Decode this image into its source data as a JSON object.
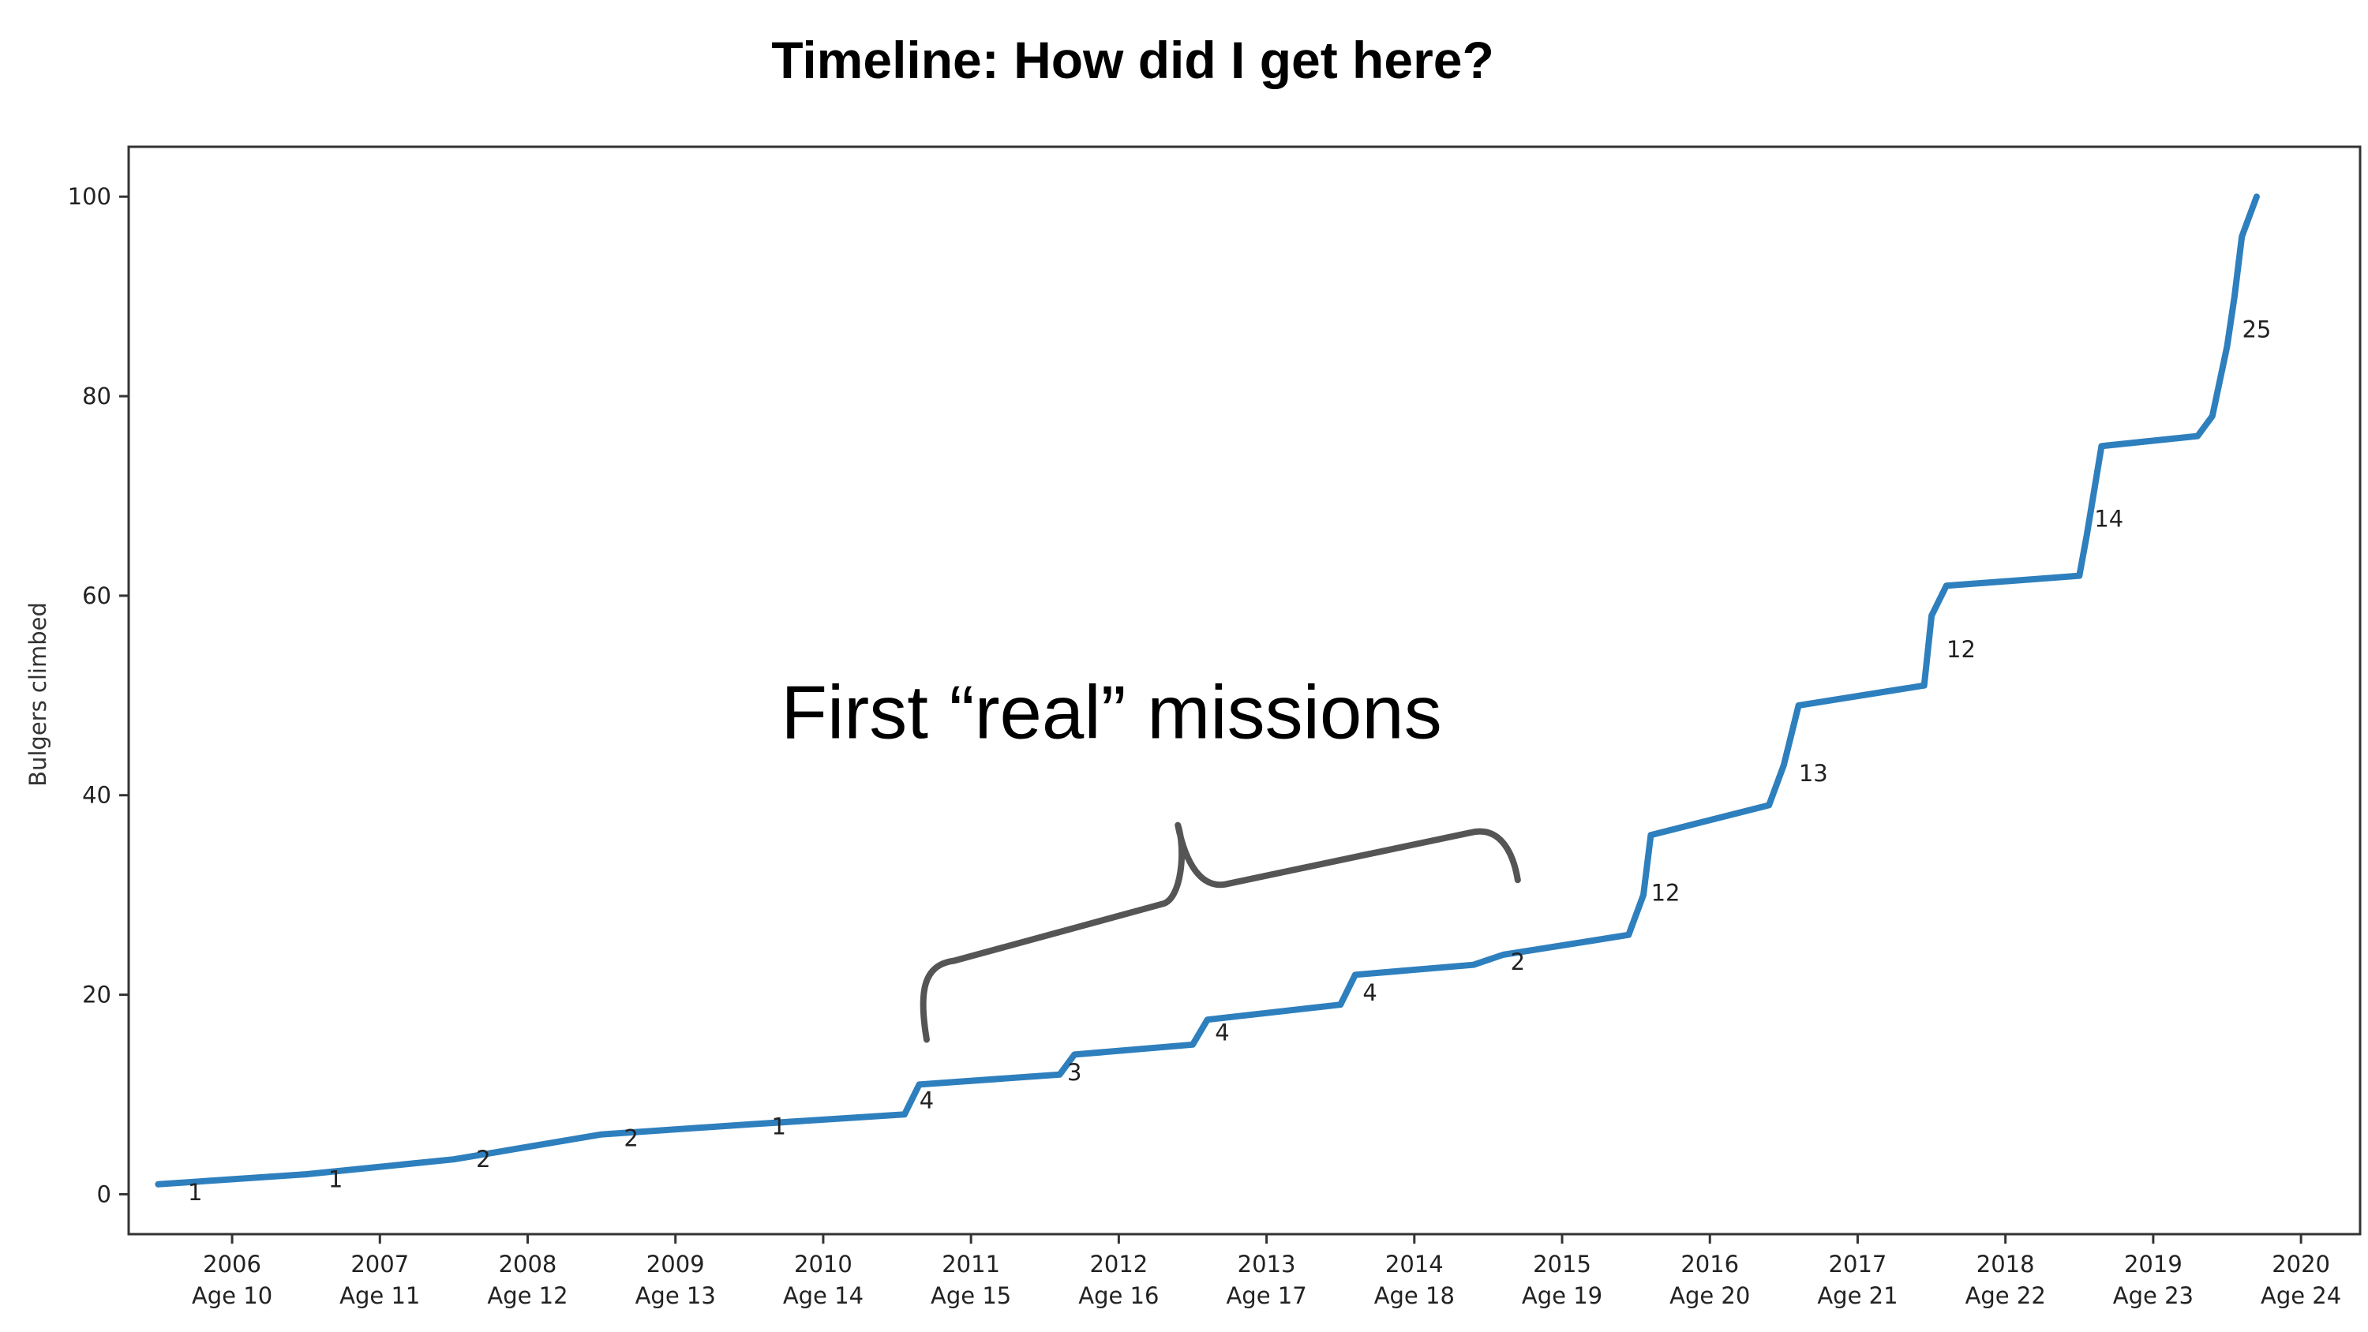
{
  "chart_data": {
    "type": "line",
    "title": "Timeline: How did I get here?",
    "xlabel": "",
    "ylabel": "Bulgers climbed",
    "ylim": [
      -4,
      105
    ],
    "xlim": [
      2005.3,
      2020.4
    ],
    "y_ticks": [
      0,
      20,
      40,
      60,
      80,
      100
    ],
    "x_ticks": [
      {
        "value": 2006,
        "year": "2006",
        "age": "Age 10"
      },
      {
        "value": 2007,
        "year": "2007",
        "age": "Age 11"
      },
      {
        "value": 2008,
        "year": "2008",
        "age": "Age 12"
      },
      {
        "value": 2009,
        "year": "2009",
        "age": "Age 13"
      },
      {
        "value": 2010,
        "year": "2010",
        "age": "Age 14"
      },
      {
        "value": 2011,
        "year": "2011",
        "age": "Age 15"
      },
      {
        "value": 2012,
        "year": "2012",
        "age": "Age 16"
      },
      {
        "value": 2013,
        "year": "2013",
        "age": "Age 17"
      },
      {
        "value": 2014,
        "year": "2014",
        "age": "Age 18"
      },
      {
        "value": 2015,
        "year": "2015",
        "age": "Age 19"
      },
      {
        "value": 2016,
        "year": "2016",
        "age": "Age 20"
      },
      {
        "value": 2017,
        "year": "2017",
        "age": "Age 21"
      },
      {
        "value": 2018,
        "year": "2018",
        "age": "Age 22"
      },
      {
        "value": 2019,
        "year": "2019",
        "age": "Age 23"
      },
      {
        "value": 2020,
        "year": "2020",
        "age": "Age 24"
      }
    ],
    "grid": false,
    "series": [
      {
        "color": "#2e7fbd",
        "points": [
          [
            2005.5,
            1
          ],
          [
            2006.5,
            2
          ],
          [
            2007.5,
            3.5
          ],
          [
            2008.5,
            6
          ],
          [
            2009.5,
            7
          ],
          [
            2010.55,
            8
          ],
          [
            2010.65,
            11
          ],
          [
            2011.6,
            12
          ],
          [
            2011.7,
            14
          ],
          [
            2012.5,
            15
          ],
          [
            2012.6,
            17.5
          ],
          [
            2013.5,
            19
          ],
          [
            2013.6,
            22
          ],
          [
            2014.4,
            23
          ],
          [
            2014.6,
            24
          ],
          [
            2015.45,
            26
          ],
          [
            2015.55,
            30
          ],
          [
            2015.6,
            36
          ],
          [
            2016.4,
            39
          ],
          [
            2016.5,
            43
          ],
          [
            2016.6,
            49
          ],
          [
            2017.45,
            51
          ],
          [
            2017.5,
            58
          ],
          [
            2017.6,
            61
          ],
          [
            2018.5,
            62
          ],
          [
            2018.55,
            66
          ],
          [
            2018.65,
            75
          ],
          [
            2019.3,
            76
          ],
          [
            2019.4,
            78
          ],
          [
            2019.5,
            85
          ],
          [
            2019.55,
            90
          ],
          [
            2019.6,
            96
          ],
          [
            2019.7,
            100
          ]
        ]
      }
    ],
    "annotations": [
      {
        "x": 2005.75,
        "y": 0.2,
        "text": "1"
      },
      {
        "x": 2006.7,
        "y": 1.5,
        "text": "1"
      },
      {
        "x": 2007.7,
        "y": 3.5,
        "text": "2"
      },
      {
        "x": 2008.7,
        "y": 5.6,
        "text": "2"
      },
      {
        "x": 2009.7,
        "y": 6.8,
        "text": "1"
      },
      {
        "x": 2010.7,
        "y": 9.4,
        "text": "4"
      },
      {
        "x": 2011.7,
        "y": 12.2,
        "text": "3"
      },
      {
        "x": 2012.7,
        "y": 16.2,
        "text": "4"
      },
      {
        "x": 2013.7,
        "y": 20.2,
        "text": "4"
      },
      {
        "x": 2014.7,
        "y": 23.3,
        "text": "2"
      },
      {
        "x": 2015.7,
        "y": 30.2,
        "text": "12"
      },
      {
        "x": 2016.7,
        "y": 42.2,
        "text": "13"
      },
      {
        "x": 2017.7,
        "y": 54.6,
        "text": "12"
      },
      {
        "x": 2018.7,
        "y": 67.7,
        "text": "14"
      },
      {
        "x": 2019.7,
        "y": 86.7,
        "text": "25"
      }
    ],
    "callout": {
      "text": "First “real” missions",
      "x": 2011.95,
      "y": 45.7,
      "bracket_start": [
        2010.7,
        15.5
      ],
      "bracket_peak": [
        2012.4,
        37
      ],
      "bracket_end": [
        2014.7,
        31.5
      ]
    }
  }
}
